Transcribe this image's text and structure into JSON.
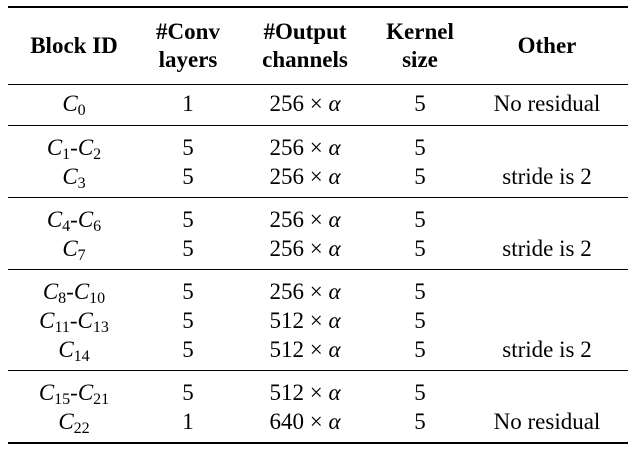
{
  "headers": {
    "block_id": "Block ID",
    "conv_line1": "#Conv",
    "conv_line2": "layers",
    "out_line1": "#Output",
    "out_line2": "channels",
    "kernel_line1": "Kernel",
    "kernel_line2": "size",
    "other": "Other"
  },
  "rows": [
    {
      "id": [
        {
          "b": "C",
          "s": "0"
        }
      ],
      "conv": "1",
      "channels": "256",
      "kernel": "5",
      "other": "No residual"
    },
    {
      "id": [
        {
          "b": "C",
          "s": "1"
        },
        {
          "b": "C",
          "s": "2"
        }
      ],
      "conv": "5",
      "channels": "256",
      "kernel": "5",
      "other": ""
    },
    {
      "id": [
        {
          "b": "C",
          "s": "3"
        }
      ],
      "conv": "5",
      "channels": "256",
      "kernel": "5",
      "other": "stride is 2"
    },
    {
      "id": [
        {
          "b": "C",
          "s": "4"
        },
        {
          "b": "C",
          "s": "6"
        }
      ],
      "conv": "5",
      "channels": "256",
      "kernel": "5",
      "other": ""
    },
    {
      "id": [
        {
          "b": "C",
          "s": "7"
        }
      ],
      "conv": "5",
      "channels": "256",
      "kernel": "5",
      "other": "stride is 2"
    },
    {
      "id": [
        {
          "b": "C",
          "s": "8"
        },
        {
          "b": "C",
          "s": "10"
        }
      ],
      "conv": "5",
      "channels": "256",
      "kernel": "5",
      "other": ""
    },
    {
      "id": [
        {
          "b": "C",
          "s": "11"
        },
        {
          "b": "C",
          "s": "13"
        }
      ],
      "conv": "5",
      "channels": "512",
      "kernel": "5",
      "other": ""
    },
    {
      "id": [
        {
          "b": "C",
          "s": "14"
        }
      ],
      "conv": "5",
      "channels": "512",
      "kernel": "5",
      "other": "stride is 2"
    },
    {
      "id": [
        {
          "b": "C",
          "s": "15"
        },
        {
          "b": "C",
          "s": "21"
        }
      ],
      "conv": "5",
      "channels": "512",
      "kernel": "5",
      "other": ""
    },
    {
      "id": [
        {
          "b": "C",
          "s": "22"
        }
      ],
      "conv": "1",
      "channels": "640",
      "kernel": "5",
      "other": "No residual"
    }
  ],
  "multiplier": "× α"
}
